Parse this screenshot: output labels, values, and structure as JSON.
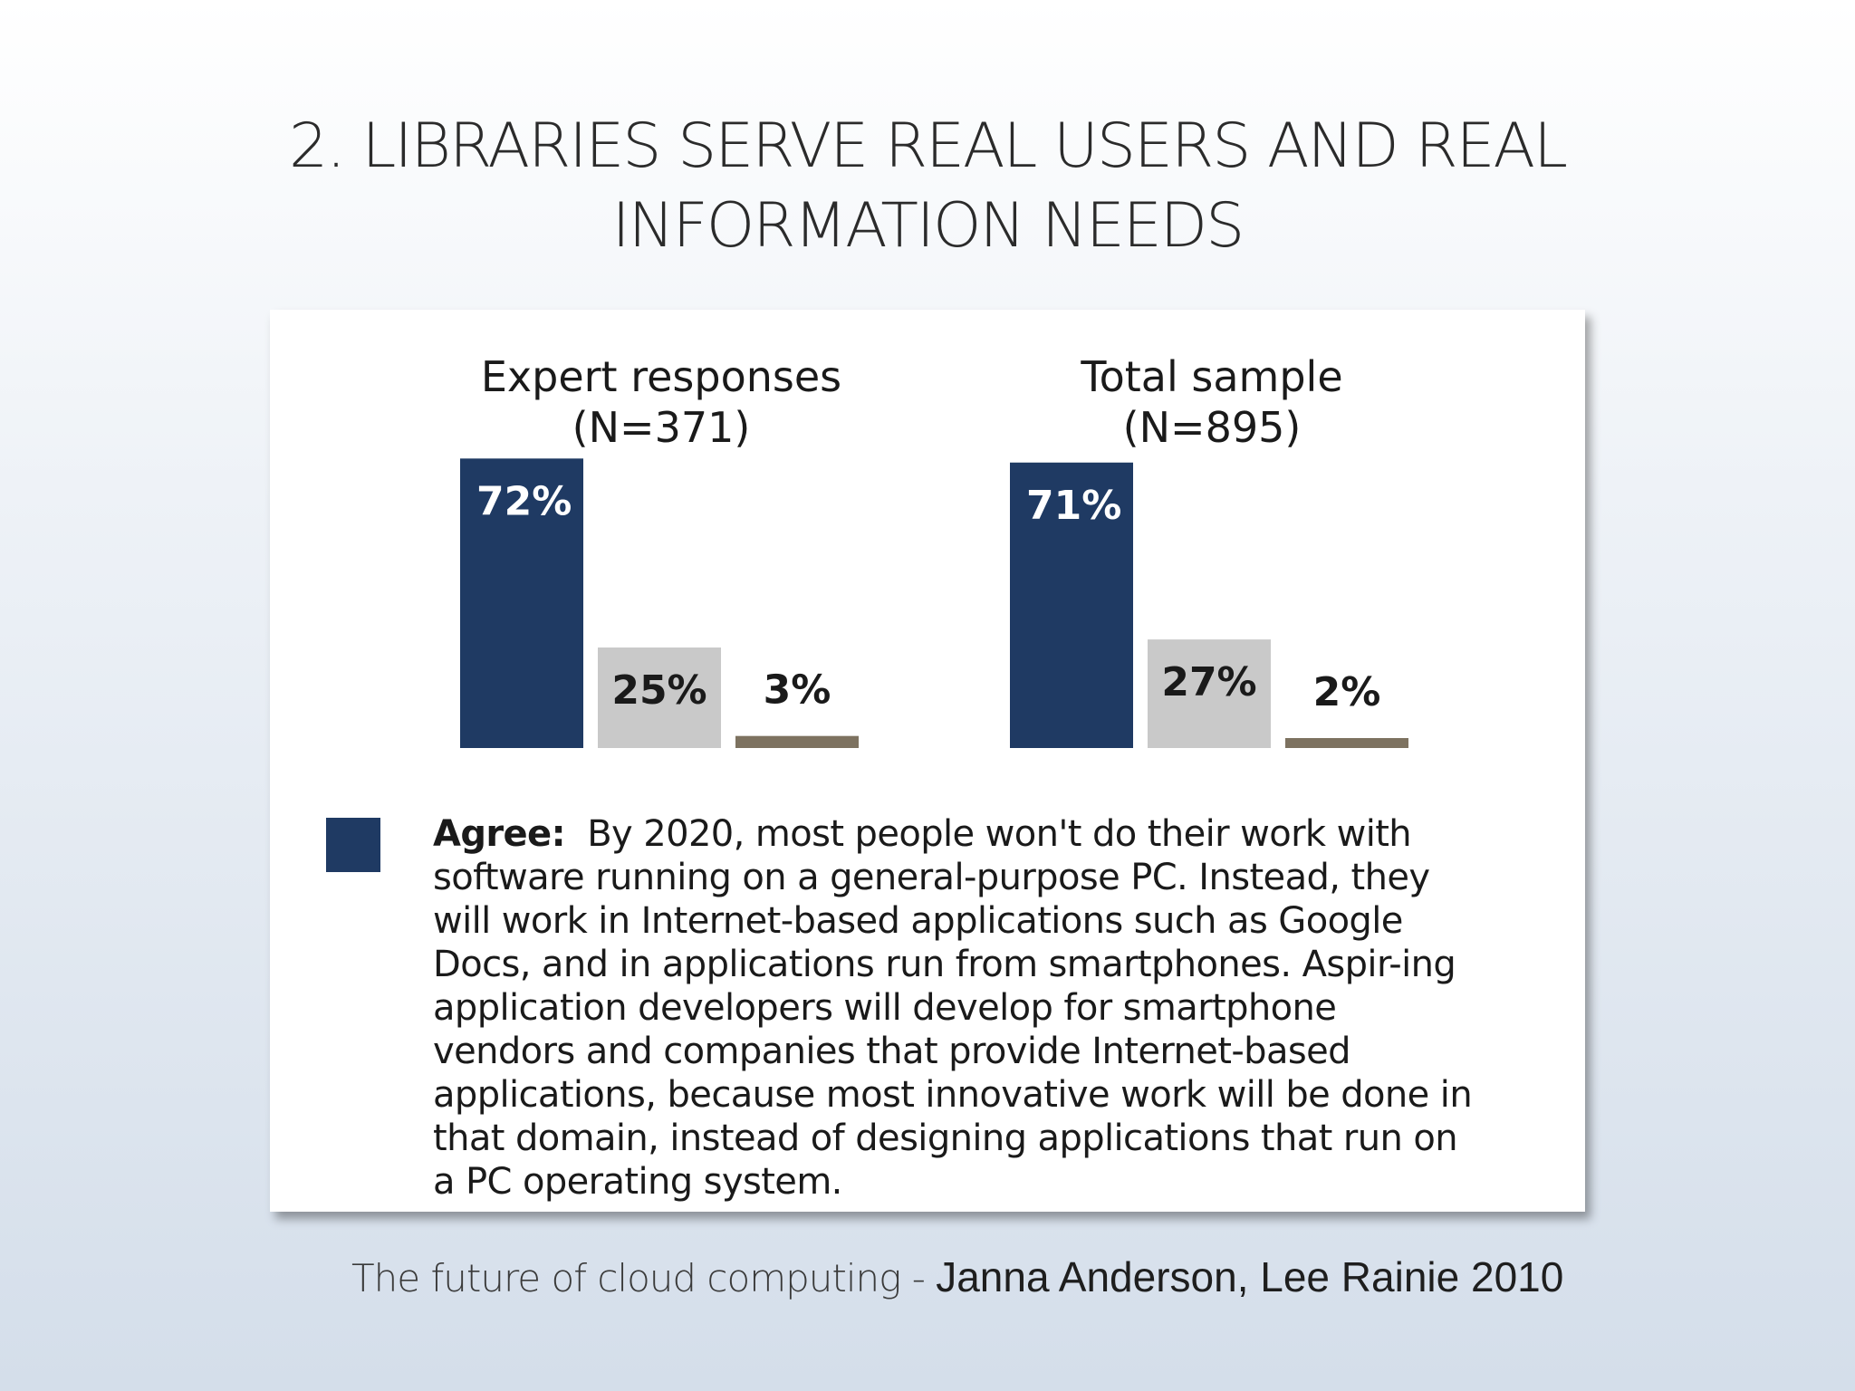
{
  "slide": {
    "title_line1": "2.  LIBRARIES SERVE REAL USERS AND REAL",
    "title_line2": "INFORMATION NEEDS"
  },
  "chart_data": {
    "type": "bar",
    "panels": [
      {
        "title_line1": "Expert responses",
        "title_line2": "(N=371)",
        "values": [
          72,
          25,
          3
        ],
        "labels": [
          "72%",
          "25%",
          "3%"
        ]
      },
      {
        "title_line1": "Total sample",
        "title_line2": "(N=895)",
        "values": [
          71,
          27,
          2
        ],
        "labels": [
          "71%",
          "27%",
          "2%"
        ]
      }
    ],
    "series_colors": [
      "#1f3a63",
      "#c9c9c9",
      "#7d7260"
    ],
    "legend": {
      "term": "Agree:",
      "text": "By 2020, most people won't do their work with software running on a general-purpose PC. Instead, they will work in Internet-based applications such as Google Docs, and in applications run from smartphones. Aspir-ing application developers will develop for smartphone vendors and companies that provide Internet-based applications, because most innovative work will be done in that domain, instead of designing applications that run on a PC operating system.",
      "color": "#1f3a63"
    }
  },
  "citation": {
    "source": "The future of cloud computing - ",
    "authors": "Janna Anderson, Lee Rainie 2010"
  }
}
